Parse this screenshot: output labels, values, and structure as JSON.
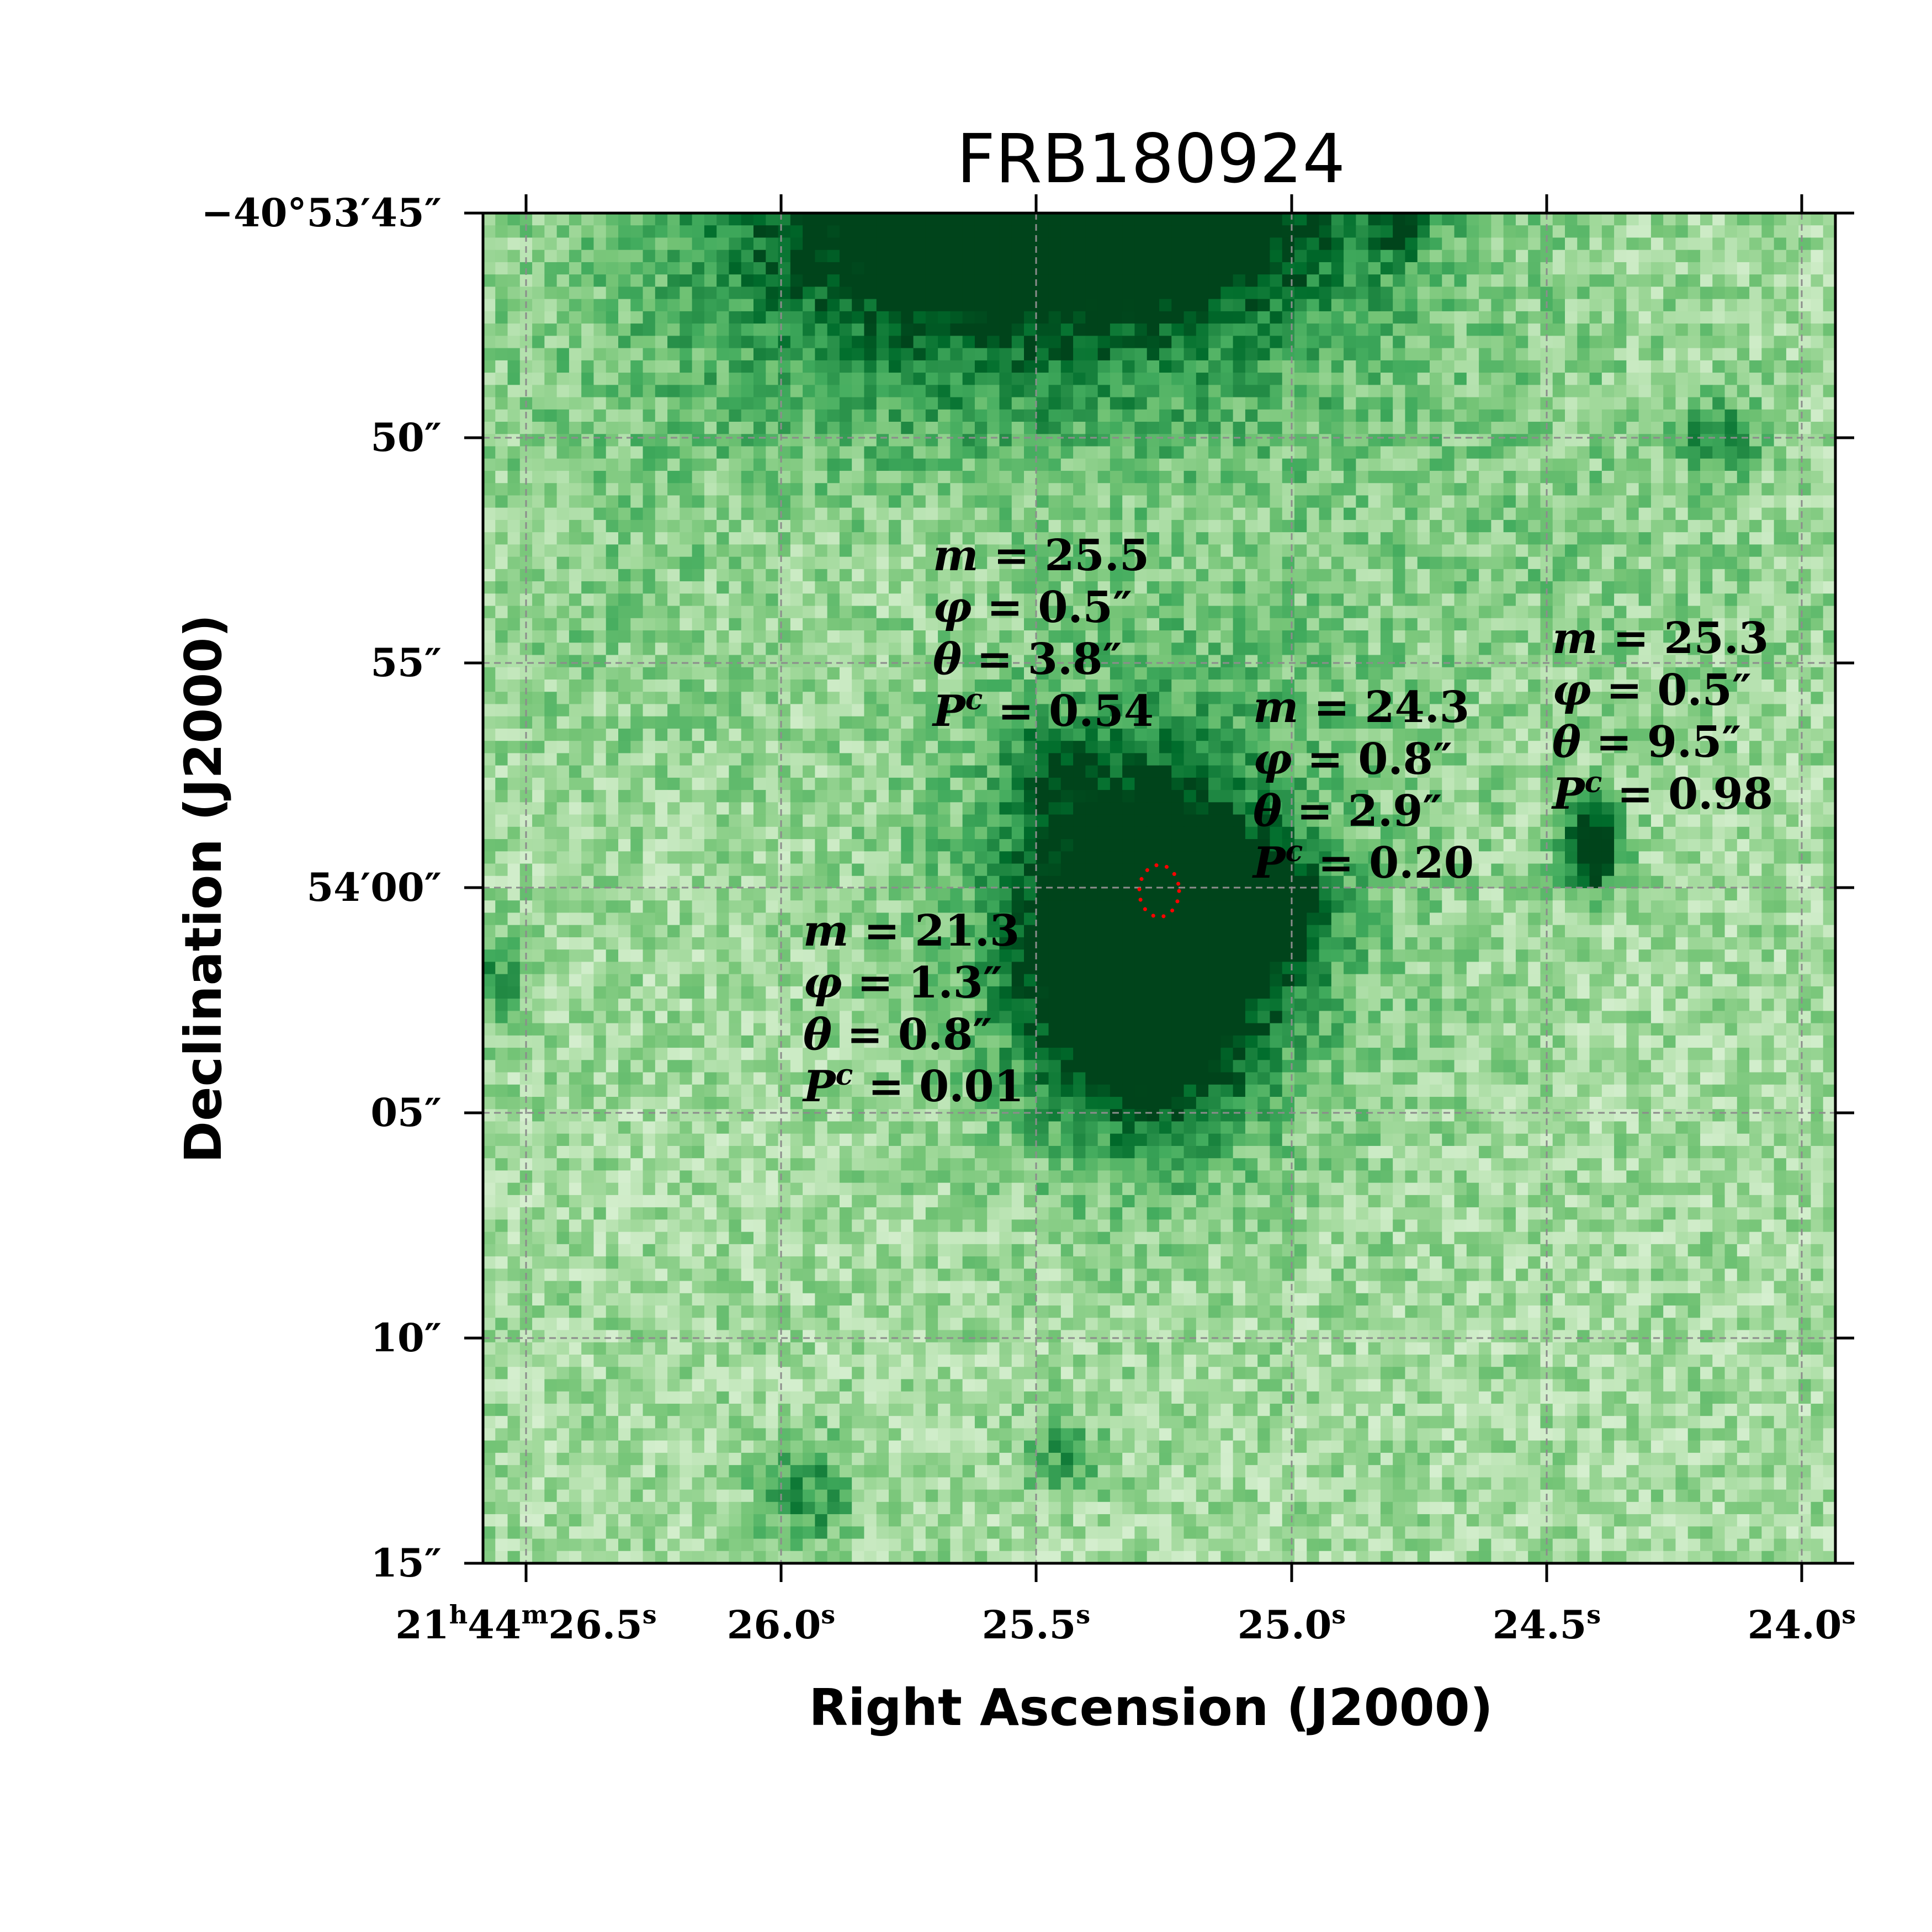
{
  "figure": {
    "title": "FRB180924",
    "xlabel": "Right Ascension (J2000)",
    "ylabel": "Declination (J2000)",
    "colormap": [
      "#f7fcf5",
      "#e5f5e0",
      "#c7e9c0",
      "#a1d99b",
      "#74c476",
      "#41ab5d",
      "#238b45",
      "#006d2c",
      "#00441b"
    ],
    "grid": true,
    "grid_color": "#8c8c8c",
    "localization_color": "#ff0000"
  },
  "axes": {
    "ra_ticks": [
      {
        "h": "21",
        "m": "44",
        "s": "26.5",
        "label": "21h44m26.5s"
      },
      {
        "s": "26.0",
        "label": "26.0s"
      },
      {
        "s": "25.5",
        "label": "25.5s"
      },
      {
        "s": "25.0",
        "label": "25.0s"
      },
      {
        "s": "24.5",
        "label": "24.5s"
      },
      {
        "s": "24.0",
        "label": "24.0s"
      }
    ],
    "dec_ticks": [
      {
        "label": "−40°53′45″"
      },
      {
        "label": "50″"
      },
      {
        "label": "55″"
      },
      {
        "label": "54′00″"
      },
      {
        "label": "05″"
      },
      {
        "label": "10″"
      },
      {
        "label": "15″"
      }
    ],
    "ra_range_s": [
      26.58,
      23.94
    ],
    "dec_range_arcsec": [
      -15,
      15
    ]
  },
  "candidates": [
    {
      "m": "21.3",
      "phi": "1.3″",
      "theta": "0.8″",
      "Pc": "0.01"
    },
    {
      "m": "25.5",
      "phi": "0.5″",
      "theta": "3.8″",
      "Pc": "0.54"
    },
    {
      "m": "24.3",
      "phi": "0.8″",
      "theta": "2.9″",
      "Pc": "0.20"
    },
    {
      "m": "25.3",
      "phi": "0.5″",
      "theta": "9.5″",
      "Pc": "0.98"
    }
  ]
}
